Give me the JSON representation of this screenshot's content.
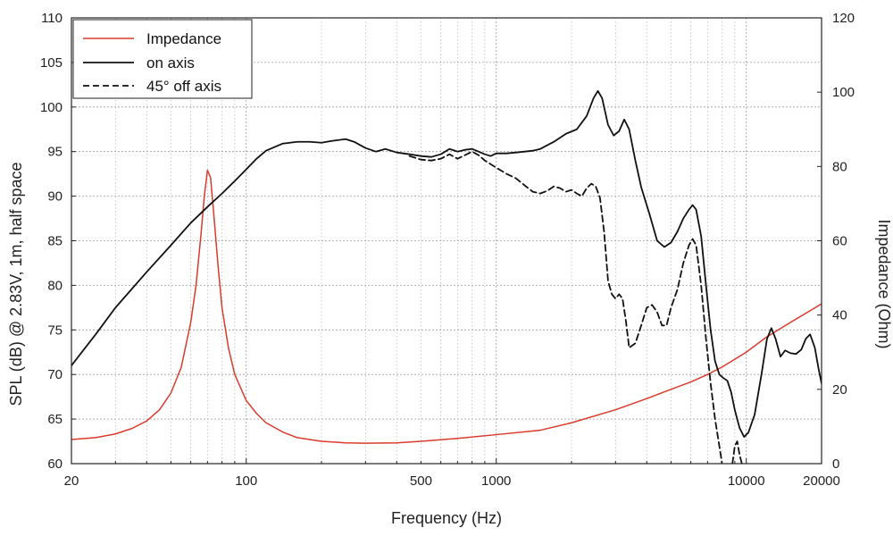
{
  "chart_data": {
    "type": "line",
    "xlabel": "Frequency (Hz)",
    "ylabel": "SPL (dB) @ 2.83V, 1m, half space",
    "y2label": "Impedance (Ohm)",
    "xscale": "log",
    "xlim": [
      20,
      20000
    ],
    "ylim": [
      60,
      110
    ],
    "y2lim": [
      0,
      120
    ],
    "x_ticks": [
      20,
      100,
      500,
      1000,
      10000,
      20000
    ],
    "x_tick_labels": [
      "20",
      "100",
      "500",
      "1000",
      "10000",
      "20000"
    ],
    "y_ticks": [
      60,
      65,
      70,
      75,
      80,
      85,
      90,
      95,
      100,
      105,
      110
    ],
    "y_tick_labels": [
      "60",
      "65",
      "70",
      "75",
      "80",
      "85",
      "90",
      "95",
      "100",
      "105",
      "110"
    ],
    "y2_ticks": [
      0,
      20,
      40,
      60,
      80,
      100,
      120
    ],
    "y2_tick_labels": [
      "0",
      "20",
      "40",
      "60",
      "80",
      "100",
      "120"
    ],
    "grid": true,
    "legend_position": "top-left",
    "series": [
      {
        "name": "Impedance",
        "axis": "right",
        "color": "#d93a2b",
        "dash": "solid",
        "points": [
          [
            20,
            6.5
          ],
          [
            25,
            7
          ],
          [
            30,
            8
          ],
          [
            35,
            9.5
          ],
          [
            40,
            11.5
          ],
          [
            45,
            14.5
          ],
          [
            50,
            19
          ],
          [
            55,
            26
          ],
          [
            60,
            38
          ],
          [
            63,
            48
          ],
          [
            66,
            62
          ],
          [
            68,
            72
          ],
          [
            70,
            79
          ],
          [
            72,
            77
          ],
          [
            74,
            68
          ],
          [
            77,
            54
          ],
          [
            80,
            42
          ],
          [
            85,
            31
          ],
          [
            90,
            24
          ],
          [
            100,
            17
          ],
          [
            110,
            13.5
          ],
          [
            120,
            11
          ],
          [
            140,
            8.5
          ],
          [
            160,
            7
          ],
          [
            200,
            6
          ],
          [
            250,
            5.6
          ],
          [
            300,
            5.5
          ],
          [
            400,
            5.6
          ],
          [
            500,
            6
          ],
          [
            700,
            6.8
          ],
          [
            1000,
            7.8
          ],
          [
            1500,
            9
          ],
          [
            2000,
            11
          ],
          [
            3000,
            14.5
          ],
          [
            4000,
            17.5
          ],
          [
            5000,
            20
          ],
          [
            6000,
            22
          ],
          [
            7000,
            24
          ],
          [
            8000,
            26
          ],
          [
            10000,
            30
          ],
          [
            12000,
            34
          ],
          [
            15000,
            38
          ],
          [
            20000,
            43
          ]
        ]
      },
      {
        "name": "on axis",
        "axis": "left",
        "color": "#111111",
        "dash": "solid",
        "points": [
          [
            20,
            71
          ],
          [
            25,
            74.5
          ],
          [
            30,
            77.5
          ],
          [
            40,
            81.5
          ],
          [
            50,
            84.5
          ],
          [
            60,
            87
          ],
          [
            70,
            88.8
          ],
          [
            80,
            90.3
          ],
          [
            90,
            91.7
          ],
          [
            100,
            93
          ],
          [
            110,
            94.2
          ],
          [
            120,
            95.1
          ],
          [
            140,
            95.9
          ],
          [
            160,
            96.1
          ],
          [
            180,
            96.1
          ],
          [
            200,
            96
          ],
          [
            220,
            96.2
          ],
          [
            250,
            96.4
          ],
          [
            270,
            96.1
          ],
          [
            300,
            95.4
          ],
          [
            330,
            95
          ],
          [
            360,
            95.3
          ],
          [
            400,
            94.9
          ],
          [
            450,
            94.7
          ],
          [
            500,
            94.5
          ],
          [
            550,
            94.4
          ],
          [
            600,
            94.7
          ],
          [
            650,
            95.3
          ],
          [
            700,
            95
          ],
          [
            750,
            95.2
          ],
          [
            800,
            95.3
          ],
          [
            850,
            95
          ],
          [
            900,
            94.7
          ],
          [
            950,
            94.5
          ],
          [
            1000,
            94.8
          ],
          [
            1100,
            94.8
          ],
          [
            1200,
            94.9
          ],
          [
            1300,
            95
          ],
          [
            1400,
            95.1
          ],
          [
            1500,
            95.3
          ],
          [
            1700,
            96.1
          ],
          [
            1900,
            97
          ],
          [
            2100,
            97.5
          ],
          [
            2300,
            99
          ],
          [
            2450,
            101
          ],
          [
            2550,
            101.8
          ],
          [
            2650,
            101
          ],
          [
            2800,
            98
          ],
          [
            2950,
            96.8
          ],
          [
            3100,
            97.3
          ],
          [
            3250,
            98.6
          ],
          [
            3400,
            97.5
          ],
          [
            3600,
            94
          ],
          [
            3800,
            91
          ],
          [
            4100,
            88
          ],
          [
            4400,
            85
          ],
          [
            4700,
            84.3
          ],
          [
            5000,
            84.8
          ],
          [
            5300,
            86
          ],
          [
            5600,
            87.5
          ],
          [
            5900,
            88.5
          ],
          [
            6100,
            89
          ],
          [
            6300,
            88.5
          ],
          [
            6600,
            85.5
          ],
          [
            6900,
            80
          ],
          [
            7200,
            75
          ],
          [
            7500,
            71.5
          ],
          [
            7800,
            70
          ],
          [
            8100,
            69.6
          ],
          [
            8400,
            69.3
          ],
          [
            8700,
            68
          ],
          [
            9000,
            66
          ],
          [
            9400,
            64
          ],
          [
            9800,
            63
          ],
          [
            10200,
            63.5
          ],
          [
            10800,
            65.5
          ],
          [
            11500,
            70
          ],
          [
            12100,
            74
          ],
          [
            12600,
            75.2
          ],
          [
            13100,
            74
          ],
          [
            13700,
            72
          ],
          [
            14300,
            72.7
          ],
          [
            15000,
            72.4
          ],
          [
            15800,
            72.3
          ],
          [
            16600,
            72.8
          ],
          [
            17300,
            74
          ],
          [
            18000,
            74.5
          ],
          [
            18800,
            73
          ],
          [
            19500,
            70.5
          ],
          [
            20000,
            69
          ]
        ]
      },
      {
        "name": "45° off axis",
        "axis": "left",
        "color": "#111111",
        "dash": "dashed",
        "points": [
          [
            450,
            94.5
          ],
          [
            500,
            94.1
          ],
          [
            550,
            94
          ],
          [
            600,
            94.2
          ],
          [
            650,
            94.7
          ],
          [
            700,
            94.2
          ],
          [
            750,
            94.6
          ],
          [
            800,
            95
          ],
          [
            850,
            94.6
          ],
          [
            900,
            94
          ],
          [
            1000,
            93.2
          ],
          [
            1100,
            92.5
          ],
          [
            1200,
            92
          ],
          [
            1300,
            91.2
          ],
          [
            1400,
            90.5
          ],
          [
            1500,
            90.3
          ],
          [
            1600,
            90.6
          ],
          [
            1700,
            91.1
          ],
          [
            1800,
            90.9
          ],
          [
            1900,
            90.5
          ],
          [
            2000,
            90.7
          ],
          [
            2100,
            90.3
          ],
          [
            2200,
            90
          ],
          [
            2300,
            90.9
          ],
          [
            2400,
            91.4
          ],
          [
            2500,
            91.1
          ],
          [
            2600,
            89.8
          ],
          [
            2700,
            86
          ],
          [
            2800,
            80.5
          ],
          [
            2900,
            79
          ],
          [
            3000,
            78.5
          ],
          [
            3100,
            79
          ],
          [
            3200,
            78.5
          ],
          [
            3300,
            76
          ],
          [
            3400,
            73
          ],
          [
            3600,
            73.5
          ],
          [
            3800,
            75.5
          ],
          [
            4000,
            77.5
          ],
          [
            4200,
            77.8
          ],
          [
            4400,
            77
          ],
          [
            4600,
            75.5
          ],
          [
            4800,
            75.5
          ],
          [
            5000,
            77.5
          ],
          [
            5300,
            79.5
          ],
          [
            5600,
            82.5
          ],
          [
            5900,
            84.5
          ],
          [
            6100,
            85.2
          ],
          [
            6300,
            84.5
          ],
          [
            6600,
            80
          ],
          [
            6900,
            74
          ],
          [
            7200,
            69
          ],
          [
            7500,
            65
          ],
          [
            7800,
            62
          ],
          [
            8000,
            60
          ]
        ]
      },
      {
        "name": "",
        "axis": "left",
        "color": "#111111",
        "dash": "dashed",
        "points": [
          [
            8800,
            60
          ],
          [
            9000,
            62
          ],
          [
            9200,
            62.5
          ],
          [
            9400,
            61
          ],
          [
            9600,
            60
          ]
        ]
      }
    ]
  }
}
